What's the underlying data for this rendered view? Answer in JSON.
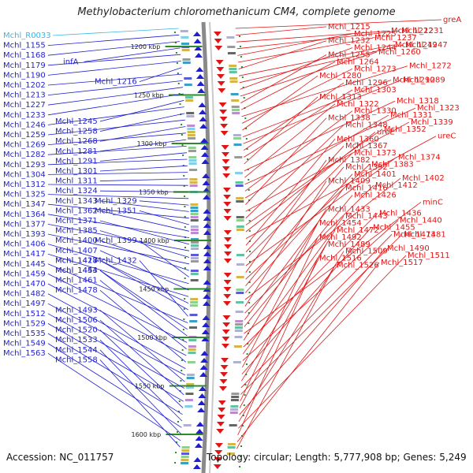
{
  "title": "Methylobacterium chloromethanicum CM4, complete genome",
  "footer": {
    "accession": "Accession: NC_011757",
    "topology": "Topology: circular; Length: 5,777,908 bp; Genes: 5,249"
  },
  "colors": {
    "reverse_strand": "#1f1fd0",
    "forward_strand": "#e01616",
    "backbone": "#8a8a8a",
    "highlight_label": "#39b6e6",
    "gc_skew_marks": "#2d8a2d"
  },
  "kbp_markers": [
    "1200 kbp",
    "1250 kbp",
    "1300 kbp",
    "1350 kbp",
    "1400 kbp",
    "1450 kbp",
    "1500 kbp",
    "1550 kbp",
    "1600 kbp"
  ],
  "left_labels": [
    "Mchl_R0033",
    "Mchl_1155",
    "Mchl_1168",
    "infA",
    "Mchl_1179",
    "Mchl_1190",
    "Mchl_1216",
    "Mchl_1202",
    "Mchl_1213",
    "Mchl_1227",
    "Mchl_1233",
    "Mchl_1245",
    "Mchl_1246",
    "Mchl_1258",
    "Mchl_1259",
    "Mchl_1268",
    "Mchl_1269",
    "Mchl_1281",
    "Mchl_1282",
    "Mchl_1291",
    "Mchl_1293",
    "Mchl_1301",
    "Mchl_1304",
    "Mchl_1311",
    "Mchl_1312",
    "Mchl_1324",
    "Mchl_1325",
    "Mchl_1329",
    "Mchl_1343",
    "Mchl_1347",
    "Mchl_1351",
    "Mchl_1362",
    "Mchl_1364",
    "Mchl_1371",
    "Mchl_1377",
    "Mchl_1385",
    "Mchl_1393",
    "Mchl_1400",
    "Mchl_1399",
    "Mchl_1406",
    "Mchl_1407",
    "Mchl_1417",
    "Mchl_1418",
    "Mchl_1427",
    "Mchl_1432",
    "Mchl_1445",
    "Mchl_1444",
    "Mchl_1453",
    "Mchl_1459",
    "Mchl_1461",
    "Mchl_1470",
    "Mchl_1478",
    "Mchl_1482",
    "Mchl_1497",
    "Mchl_1493",
    "Mchl_1512",
    "Mchl_1506",
    "Mchl_1529",
    "Mchl_1520",
    "Mchl_1535",
    "Mchl_1533",
    "Mchl_1549",
    "Mchl_1544",
    "Mchl_1563",
    "Mchl_1558"
  ],
  "right_labels": [
    "greA",
    "Mchl_1215",
    "Mchl_1222",
    "Mchl_1231",
    "Mchl_1225",
    "Mchl_1237",
    "Mchl_1232",
    "Mchl_1249",
    "Mchl_1247",
    "Mchl_1244",
    "Mchl_1260",
    "Mchl_1255",
    "Mchl_1264",
    "Mchl_1272",
    "Mchl_1273",
    "Mchl_1280",
    "Mchl_1290",
    "Mchl_1289",
    "Mchl_1296",
    "Mchl_1303",
    "Mchl_1313",
    "Mchl_1318",
    "Mchl_1322",
    "Mchl_1323",
    "Mchl_1330",
    "Mchl_1331",
    "Mchl_1338",
    "Mchl_1339",
    "Mchl_1348",
    "Mchl_1352",
    "ureE",
    "ureC",
    "Mchl_1360",
    "Mchl_1367",
    "Mchl_1373",
    "Mchl_1374",
    "Mchl_1382",
    "Mchl_1383",
    "Mchl_1392",
    "Mchl_1401",
    "Mchl_1402",
    "Mchl_1409",
    "Mchl_1412",
    "Mchl_1416",
    "Mchl_1426",
    "minC",
    "Mchl_1433",
    "Mchl_1436",
    "Mchl_1443",
    "Mchl_1440",
    "Mchl_1454",
    "Mchl_1455",
    "Mchl_1472",
    "Mchl_1473",
    "Mchl_1481",
    "Mchl_1492",
    "Mchl_1489",
    "Mchl_1490",
    "Mchl_1509",
    "Mchl_1511",
    "Mchl_1516",
    "Mchl_1517",
    "Mchl_1526"
  ]
}
